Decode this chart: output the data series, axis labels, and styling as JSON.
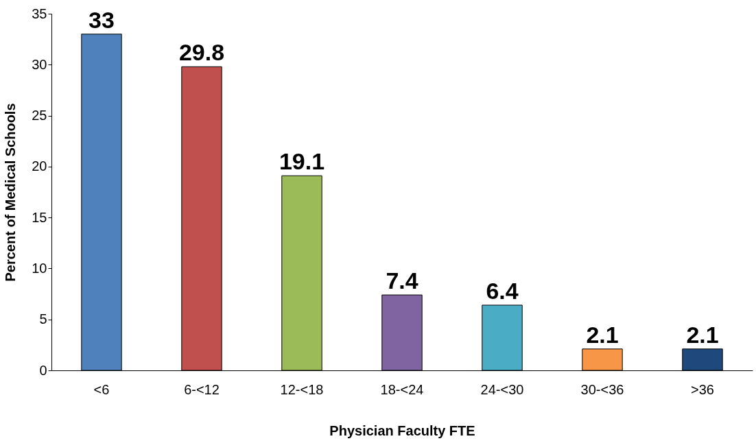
{
  "chart_data": {
    "type": "bar",
    "xlabel": "Physician Faculty FTE",
    "ylabel": "Percent of Medical Schools",
    "categories": [
      "<6",
      "6-<12",
      "12-<18",
      "18-<24",
      "24-<30",
      "30-<36",
      ">36"
    ],
    "values": [
      33,
      29.8,
      19.1,
      7.4,
      6.4,
      2.1,
      2.1
    ],
    "colors": [
      "#4f81bd",
      "#c0504d",
      "#9bbb59",
      "#8064a2",
      "#4bacc6",
      "#f79646",
      "#1f497d"
    ],
    "ylim": [
      0,
      35
    ],
    "yticks": [
      0,
      5,
      10,
      15,
      20,
      25,
      30,
      35
    ],
    "data_labels": true,
    "grid": false,
    "legend": false
  }
}
